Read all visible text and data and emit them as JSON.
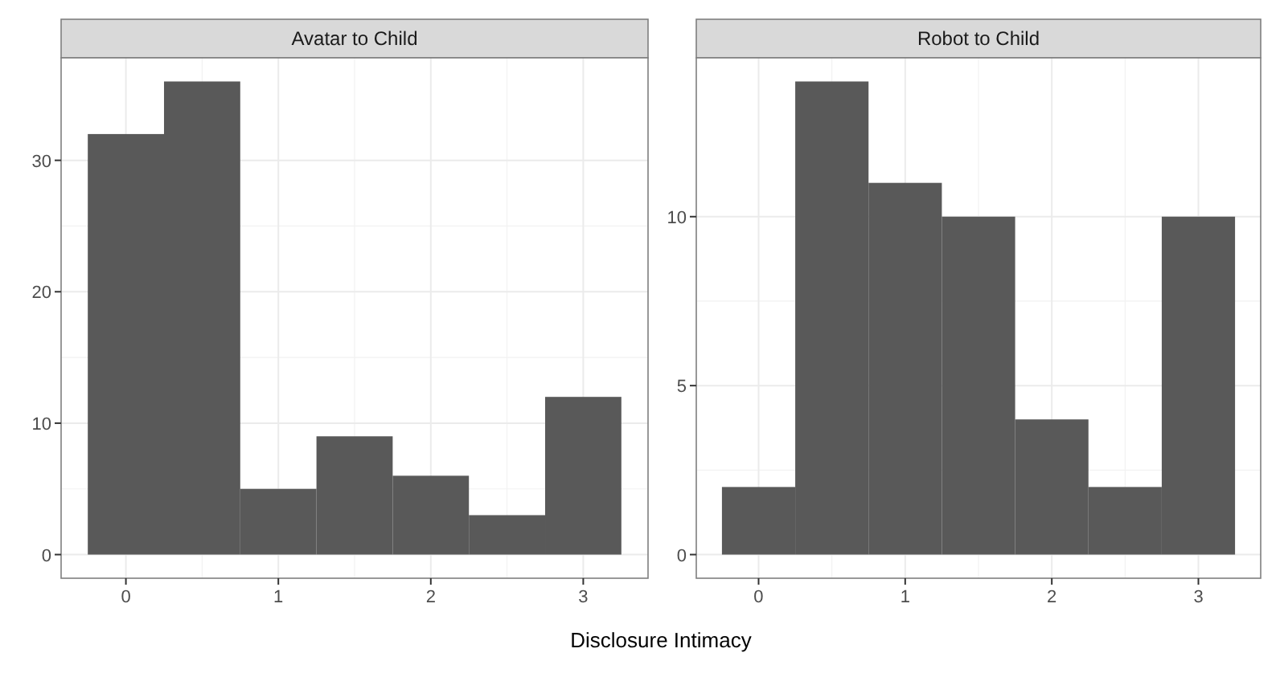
{
  "chart_data": [
    {
      "type": "histogram",
      "title": "Avatar to Child",
      "bins": [
        -0.25,
        0.25,
        0.75,
        1.25,
        1.75,
        2.25,
        2.75,
        3.25
      ],
      "values": [
        32,
        36,
        5,
        9,
        6,
        3,
        12
      ],
      "color": "#595959",
      "xlim": [
        -0.425,
        3.425
      ],
      "xticks": [
        0,
        1,
        2,
        3
      ],
      "ylim": [
        -1.8,
        37.8
      ],
      "yticks": [
        0,
        10,
        20,
        30
      ],
      "grid": true
    },
    {
      "type": "histogram",
      "title": "Robot to Child",
      "xlabel": "Disclosure Intimacy",
      "bins": [
        -0.25,
        0.25,
        0.75,
        1.25,
        1.75,
        2.25,
        2.75,
        3.25
      ],
      "values": [
        2,
        14,
        11,
        10,
        4,
        2,
        10
      ],
      "color": "#595959",
      "xlim": [
        -0.425,
        3.425
      ],
      "xticks": [
        0,
        1,
        2,
        3
      ],
      "ylim": [
        -0.7,
        14.7
      ],
      "yticks": [
        0,
        5,
        10
      ],
      "grid": true
    }
  ]
}
